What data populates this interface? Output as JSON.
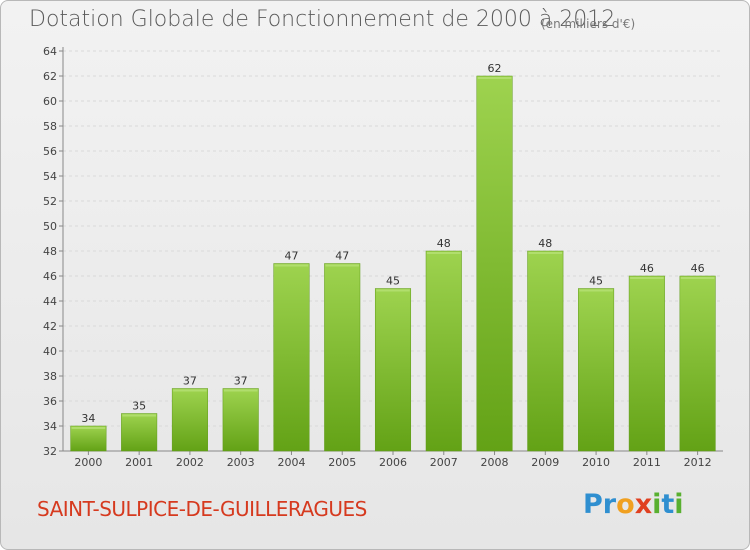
{
  "header": {
    "title": "Dotation Globale de Fonctionnement de 2000 à 2012",
    "unit": "(en milliers d'€)"
  },
  "footer": {
    "commune": "SAINT-SULPICE-DE-GUILLERAGUES",
    "logo_letters": [
      "P",
      "r",
      "o",
      "x",
      "i",
      "t",
      "i"
    ],
    "logo_colors": [
      "#2f8fd0",
      "#2f8fd0",
      "#f0a020",
      "#e04020",
      "#59b030",
      "#2f8fd0",
      "#59b030"
    ]
  },
  "chart_data": {
    "type": "bar",
    "title": "Dotation Globale de Fonctionnement de 2000 à 2012",
    "xlabel": "",
    "ylabel": "",
    "categories": [
      "2000",
      "2001",
      "2002",
      "2003",
      "2004",
      "2005",
      "2006",
      "2007",
      "2008",
      "2009",
      "2010",
      "2011",
      "2012"
    ],
    "values": [
      34,
      35,
      37,
      37,
      47,
      47,
      45,
      48,
      62,
      48,
      45,
      46,
      46
    ],
    "ylim": [
      32,
      64
    ],
    "yticks": [
      32,
      34,
      36,
      38,
      40,
      42,
      44,
      46,
      48,
      50,
      52,
      54,
      56,
      58,
      60,
      62,
      64
    ],
    "grid": true,
    "legend": "none",
    "bar_color": "#7bbf2a"
  }
}
